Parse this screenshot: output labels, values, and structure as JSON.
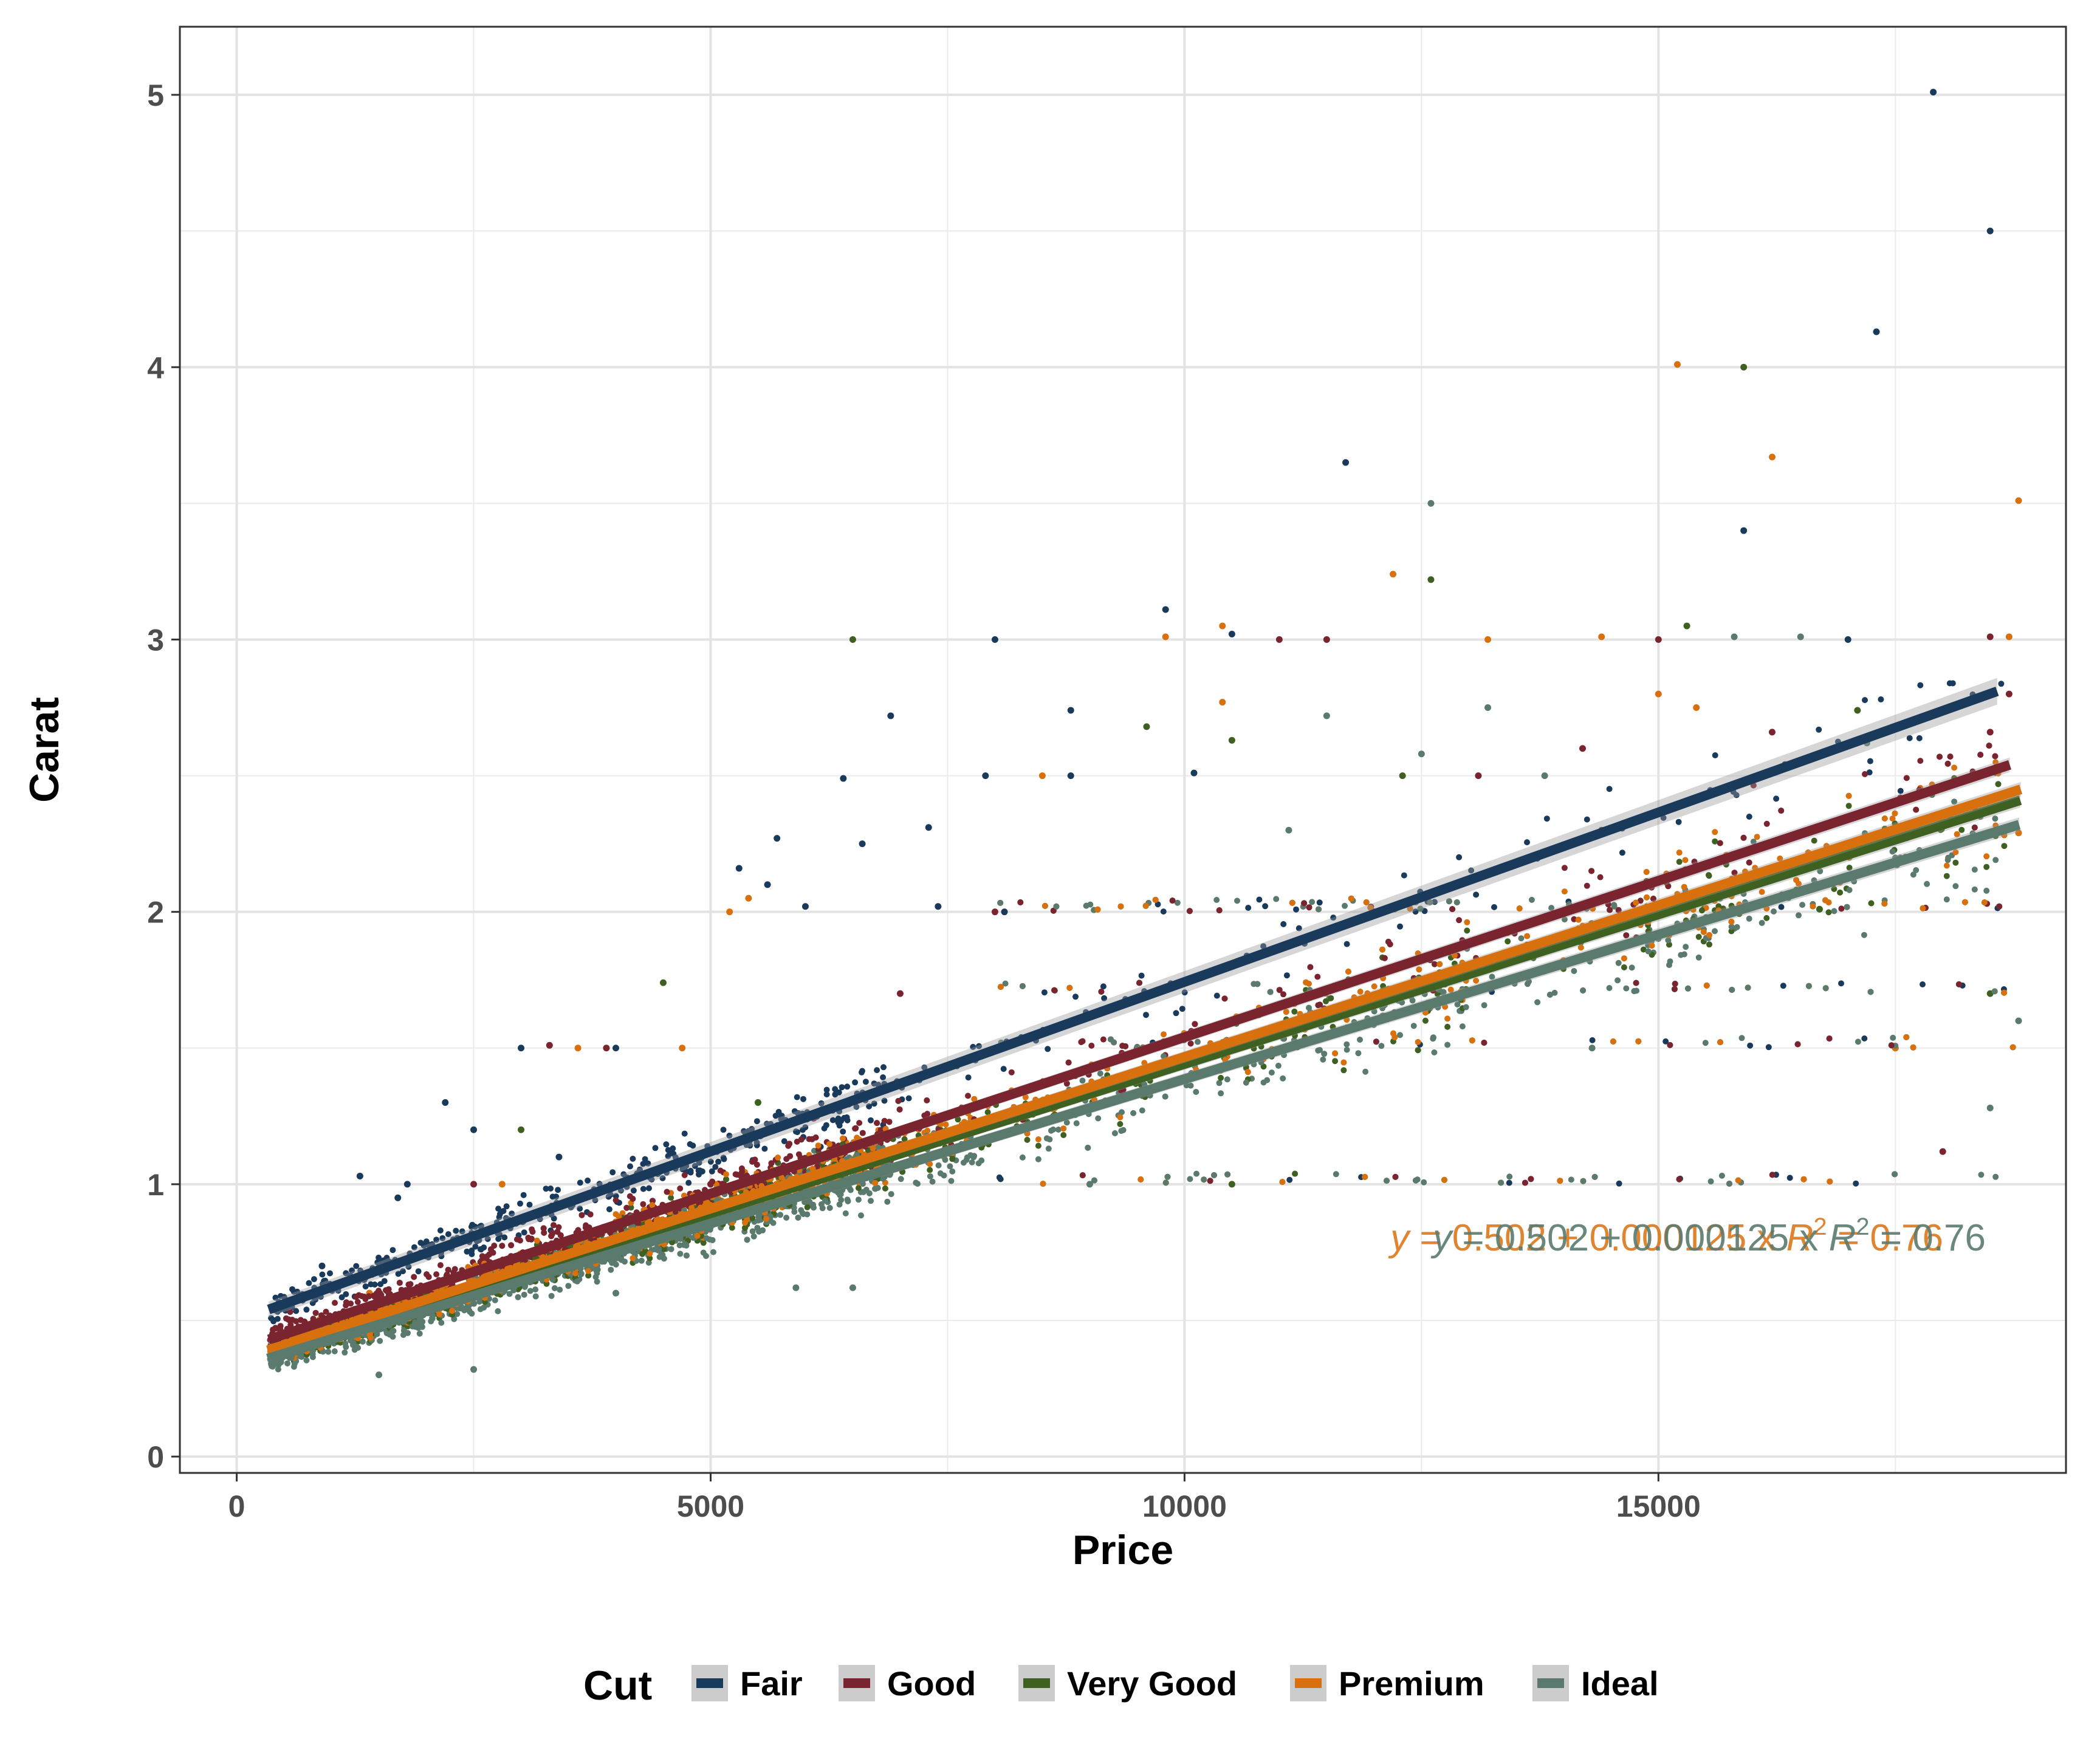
{
  "chart_data": {
    "type": "scatter",
    "title": "",
    "xlabel": "Price",
    "ylabel": "Carat",
    "xlim": [
      -600,
      19300
    ],
    "ylim": [
      -0.06,
      5.25
    ],
    "x_ticks": [
      0,
      5000,
      10000,
      15000
    ],
    "x_tick_labels": [
      "0",
      "5000",
      "10000",
      "15000"
    ],
    "y_ticks": [
      0,
      1,
      2,
      3,
      4,
      5
    ],
    "y_tick_labels": [
      "0",
      "1",
      "2",
      "3",
      "4",
      "5"
    ],
    "grid": true,
    "legend": {
      "title": "Cut",
      "position": "bottom"
    },
    "series": [
      {
        "name": "Fair",
        "color": "#1a3a5c",
        "fit": {
          "x": [
            337,
            18574
          ],
          "y": [
            0.54,
            2.81
          ]
        },
        "points": [
          [
            17900,
            5.01
          ],
          [
            18500,
            4.5
          ],
          [
            17300,
            4.13
          ],
          [
            11700,
            3.65
          ],
          [
            15900,
            3.4
          ],
          [
            9800,
            3.11
          ],
          [
            8000,
            3.0
          ],
          [
            10500,
            3.02
          ],
          [
            17000,
            3.0
          ],
          [
            6900,
            2.72
          ],
          [
            8800,
            2.74
          ],
          [
            6400,
            2.49
          ],
          [
            7900,
            2.5
          ],
          [
            8800,
            2.5
          ],
          [
            5700,
            2.27
          ],
          [
            6600,
            2.25
          ],
          [
            7300,
            2.31
          ],
          [
            5300,
            2.16
          ],
          [
            5600,
            2.1
          ],
          [
            6000,
            2.02
          ],
          [
            7400,
            2.02
          ],
          [
            8100,
            2.0
          ],
          [
            10100,
            2.51
          ],
          [
            4000,
            1.5
          ],
          [
            3000,
            1.5
          ],
          [
            2200,
            1.3
          ],
          [
            1800,
            1.0
          ],
          [
            1300,
            1.03
          ],
          [
            1700,
            0.95
          ],
          [
            2500,
            1.2
          ],
          [
            3400,
            1.1
          ],
          [
            900,
            0.7
          ]
        ]
      },
      {
        "name": "Good",
        "color": "#7a2430",
        "fit": {
          "x": [
            337,
            18707
          ],
          "y": [
            0.43,
            2.54
          ]
        },
        "points": [
          [
            11500,
            3.0
          ],
          [
            15000,
            3.0
          ],
          [
            18500,
            3.01
          ],
          [
            11000,
            3.0
          ],
          [
            13100,
            2.5
          ],
          [
            16200,
            2.66
          ],
          [
            18700,
            2.8
          ],
          [
            18500,
            2.66
          ],
          [
            8000,
            2.0
          ],
          [
            14200,
            2.6
          ],
          [
            12000,
            2.0
          ],
          [
            3300,
            1.51
          ],
          [
            3900,
            1.5
          ],
          [
            7000,
            1.7
          ],
          [
            9500,
            1.5
          ],
          [
            15000,
            2.0
          ],
          [
            17500,
            1.5
          ],
          [
            2500,
            1.0
          ],
          [
            5000,
            1.0
          ],
          [
            18000,
            1.12
          ]
        ]
      },
      {
        "name": "Very Good",
        "color": "#3e6020",
        "fit": {
          "x": [
            336,
            18818
          ],
          "y": [
            0.38,
            2.41
          ]
        },
        "points": [
          [
            15900,
            4.0
          ],
          [
            12600,
            3.22
          ],
          [
            6500,
            3.0
          ],
          [
            15300,
            3.05
          ],
          [
            17100,
            2.74
          ],
          [
            10500,
            2.63
          ],
          [
            9600,
            2.68
          ],
          [
            4500,
            1.74
          ],
          [
            12300,
            2.5
          ],
          [
            14400,
            2.3
          ],
          [
            16700,
            2.01
          ],
          [
            3000,
            1.2
          ],
          [
            5500,
            1.3
          ],
          [
            18500,
            1.7
          ],
          [
            1800,
            0.6
          ],
          [
            10500,
            1.0
          ]
        ]
      },
      {
        "name": "Premium",
        "color": "#d9700e",
        "fit": {
          "x": [
            326,
            18823
          ],
          "y": [
            0.39,
            2.45
          ]
        },
        "points": [
          [
            15200,
            4.01
          ],
          [
            16200,
            3.67
          ],
          [
            18800,
            3.51
          ],
          [
            12200,
            3.24
          ],
          [
            10400,
            3.05
          ],
          [
            14400,
            3.01
          ],
          [
            13200,
            3.0
          ],
          [
            9800,
            3.01
          ],
          [
            18700,
            3.01
          ],
          [
            15000,
            2.8
          ],
          [
            10400,
            2.77
          ],
          [
            15400,
            2.75
          ],
          [
            8500,
            2.5
          ],
          [
            5400,
            2.05
          ],
          [
            5200,
            2.0
          ],
          [
            3600,
            1.5
          ],
          [
            4700,
            1.5
          ],
          [
            1400,
            0.6
          ],
          [
            2800,
            1.0
          ],
          [
            17500,
            1.5
          ],
          [
            18800,
            2.29
          ]
        ]
      },
      {
        "name": "Ideal",
        "color": "#5a7a6e",
        "fit": {
          "x": [
            326,
            18806
          ],
          "y": [
            0.36,
            2.32
          ]
        },
        "points": [
          [
            12600,
            3.5
          ],
          [
            11500,
            2.72
          ],
          [
            13200,
            2.75
          ],
          [
            15800,
            3.01
          ],
          [
            16500,
            3.01
          ],
          [
            12500,
            2.58
          ],
          [
            17200,
            2.62
          ],
          [
            13800,
            2.5
          ],
          [
            11100,
            2.3
          ],
          [
            5900,
            0.62
          ],
          [
            6500,
            0.62
          ],
          [
            1500,
            0.3
          ],
          [
            2500,
            0.32
          ],
          [
            9000,
            1.0
          ],
          [
            14300,
            1.5
          ],
          [
            18500,
            1.28
          ],
          [
            18800,
            1.6
          ],
          [
            4000,
            0.6
          ]
        ]
      }
    ],
    "annotation": {
      "y_label": "y",
      "equation": " = 0.502 + 0.000125 x",
      "r2_label": "R",
      "r2_exp": "2",
      "r2_value": " = 0.76"
    }
  }
}
